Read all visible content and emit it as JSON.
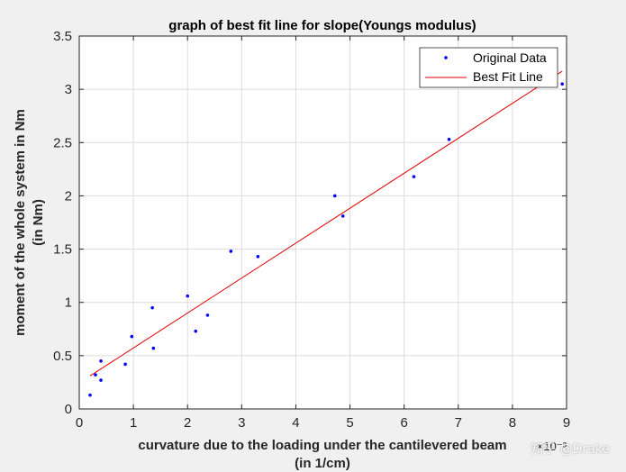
{
  "watermark": "知乎 @Drake",
  "chart_data": {
    "type": "scatter",
    "title": "graph of best fit line for slope(Youngs modulus)",
    "xlabel": [
      "curvature due to the loading under the cantilevered beam",
      "(in 1/cm)"
    ],
    "ylabel": [
      "moment of the whole system in Nm",
      "(in Nm)"
    ],
    "x_exponent_label": "×10⁻³",
    "xlim": [
      0,
      9
    ],
    "ylim": [
      0,
      3.5
    ],
    "xticks": [
      0,
      1,
      2,
      3,
      4,
      5,
      6,
      7,
      8,
      9
    ],
    "yticks": [
      0,
      0.5,
      1,
      1.5,
      2,
      2.5,
      3,
      3.5
    ],
    "xtick_labels": [
      "0",
      "1",
      "2",
      "3",
      "4",
      "5",
      "6",
      "7",
      "8",
      "9"
    ],
    "ytick_labels": [
      "0",
      "0.5",
      "1",
      "1.5",
      "2",
      "2.5",
      "3",
      "3.5"
    ],
    "grid": true,
    "legend_position": "top-right",
    "series": [
      {
        "name": "Original Data",
        "marker": "dot",
        "color": "#0000ff",
        "points": [
          [
            0.2,
            0.13
          ],
          [
            0.3,
            0.32
          ],
          [
            0.4,
            0.27
          ],
          [
            0.4,
            0.45
          ],
          [
            0.85,
            0.42
          ],
          [
            0.97,
            0.68
          ],
          [
            1.35,
            0.95
          ],
          [
            1.37,
            0.57
          ],
          [
            2.0,
            1.06
          ],
          [
            2.15,
            0.73
          ],
          [
            2.37,
            0.88
          ],
          [
            2.8,
            1.48
          ],
          [
            3.3,
            1.43
          ],
          [
            4.72,
            2.0
          ],
          [
            4.87,
            1.81
          ],
          [
            6.18,
            2.18
          ],
          [
            6.83,
            2.53
          ],
          [
            8.92,
            3.05
          ]
        ]
      },
      {
        "name": "Best Fit Line",
        "type": "line",
        "color": "#e00000",
        "points": [
          [
            0.2,
            0.31
          ],
          [
            8.92,
            3.17
          ]
        ]
      }
    ]
  }
}
